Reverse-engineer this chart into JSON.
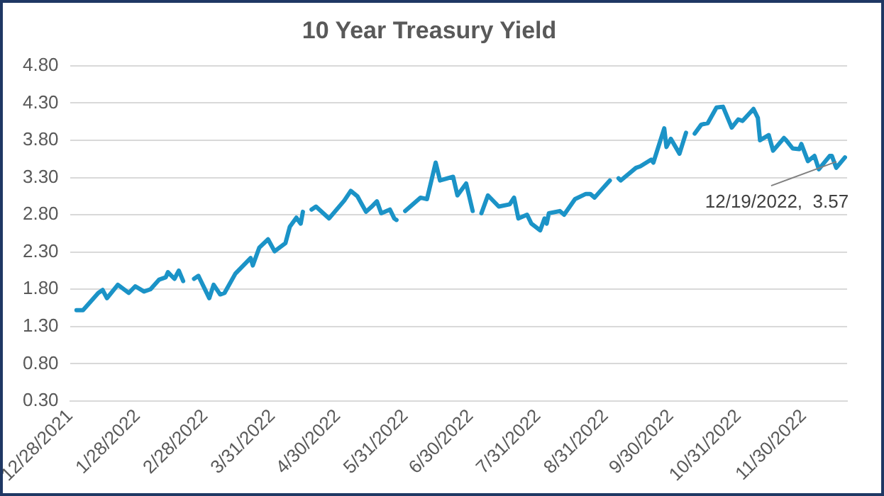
{
  "chart_data": {
    "type": "line",
    "title": "10 Year Treasury Yield",
    "color": "#1b93c7",
    "grid": "y",
    "legend": false,
    "marker": "none",
    "line_style": "solid",
    "x": [
      "2021-12-31",
      "2022-01-03",
      "2022-01-10",
      "2022-01-12",
      "2022-01-14",
      "2022-01-19",
      "2022-01-24",
      "2022-01-27",
      "2022-01-31",
      "2022-02-03",
      "2022-02-07",
      "2022-02-10",
      "2022-02-11",
      "2022-02-14",
      "2022-02-16",
      "2022-02-18",
      "2022-02-21",
      "2022-02-23",
      "2022-02-25",
      "2022-03-02",
      "2022-03-04",
      "2022-03-07",
      "2022-03-09",
      "2022-03-14",
      "2022-03-21",
      "2022-03-22",
      "2022-03-25",
      "2022-03-29",
      "2022-04-01",
      "2022-04-06",
      "2022-04-08",
      "2022-04-11",
      "2022-04-13",
      "2022-04-14",
      "2022-04-15",
      "2022-04-18",
      "2022-04-20",
      "2022-04-26",
      "2022-05-03",
      "2022-05-06",
      "2022-05-09",
      "2022-05-13",
      "2022-05-16",
      "2022-05-18",
      "2022-05-20",
      "2022-05-24",
      "2022-05-26",
      "2022-05-27",
      "2022-05-30",
      "2022-05-31",
      "2022-06-07",
      "2022-06-10",
      "2022-06-14",
      "2022-06-16",
      "2022-06-22",
      "2022-06-24",
      "2022-06-28",
      "2022-07-01",
      "2022-07-04",
      "2022-07-05",
      "2022-07-08",
      "2022-07-13",
      "2022-07-18",
      "2022-07-20",
      "2022-07-22",
      "2022-07-26",
      "2022-07-28",
      "2022-08-01",
      "2022-08-03",
      "2022-08-04",
      "2022-08-05",
      "2022-08-10",
      "2022-08-12",
      "2022-08-17",
      "2022-08-22",
      "2022-08-24",
      "2022-08-26",
      "2022-08-29",
      "2022-09-02",
      "2022-09-05",
      "2022-09-06",
      "2022-09-07",
      "2022-09-14",
      "2022-09-16",
      "2022-09-21",
      "2022-09-22",
      "2022-09-27",
      "2022-09-28",
      "2022-09-30",
      "2022-10-04",
      "2022-10-07",
      "2022-10-10",
      "2022-10-11",
      "2022-10-14",
      "2022-10-17",
      "2022-10-21",
      "2022-10-24",
      "2022-10-28",
      "2022-10-31",
      "2022-11-02",
      "2022-11-07",
      "2022-11-09",
      "2022-11-10",
      "2022-11-14",
      "2022-11-16",
      "2022-11-21",
      "2022-11-22",
      "2022-11-25",
      "2022-11-28",
      "2022-11-29",
      "2022-12-02",
      "2022-12-05",
      "2022-12-07",
      "2022-12-12",
      "2022-12-13",
      "2022-12-15",
      "2022-12-19"
    ],
    "values": [
      1.52,
      1.52,
      1.75,
      1.79,
      1.68,
      1.86,
      1.75,
      1.84,
      1.77,
      1.8,
      1.93,
      1.96,
      2.03,
      1.94,
      2.05,
      1.91,
      null,
      1.94,
      1.98,
      1.68,
      1.86,
      1.73,
      1.75,
      2.01,
      2.22,
      2.12,
      2.36,
      2.47,
      2.31,
      2.42,
      2.64,
      2.76,
      2.68,
      2.84,
      null,
      2.87,
      2.91,
      2.75,
      2.99,
      3.12,
      3.05,
      2.84,
      2.92,
      2.98,
      2.82,
      2.87,
      2.75,
      2.73,
      null,
      2.85,
      3.03,
      3.01,
      3.5,
      3.26,
      3.31,
      3.06,
      3.22,
      2.85,
      null,
      2.82,
      3.06,
      2.91,
      2.94,
      3.03,
      2.75,
      2.8,
      2.68,
      2.59,
      2.75,
      2.68,
      2.82,
      2.85,
      2.8,
      3.01,
      3.08,
      3.08,
      3.03,
      3.13,
      3.26,
      null,
      3.29,
      3.26,
      3.43,
      3.45,
      3.54,
      3.5,
      3.96,
      3.71,
      3.82,
      3.62,
      3.9,
      null,
      3.89,
      4.01,
      4.03,
      4.24,
      4.25,
      3.97,
      4.08,
      4.06,
      4.22,
      4.1,
      3.8,
      3.87,
      3.66,
      3.83,
      3.8,
      3.69,
      3.68,
      3.75,
      3.52,
      3.59,
      3.41,
      3.59,
      3.59,
      3.43,
      3.57
    ],
    "xlim": [
      "2021-12-28",
      "2022-12-20"
    ],
    "xticks": [
      {
        "value": "2021-12-28",
        "label": "12/28/2021"
      },
      {
        "value": "2022-01-28",
        "label": "1/28/2022"
      },
      {
        "value": "2022-02-28",
        "label": "2/28/2022"
      },
      {
        "value": "2022-03-31",
        "label": "3/31/2022"
      },
      {
        "value": "2022-04-30",
        "label": "4/30/2022"
      },
      {
        "value": "2022-05-31",
        "label": "5/31/2022"
      },
      {
        "value": "2022-06-30",
        "label": "6/30/2022"
      },
      {
        "value": "2022-07-31",
        "label": "7/31/2022"
      },
      {
        "value": "2022-08-31",
        "label": "8/31/2022"
      },
      {
        "value": "2022-09-30",
        "label": "9/30/2022"
      },
      {
        "value": "2022-10-31",
        "label": "10/31/2022"
      },
      {
        "value": "2022-11-30",
        "label": "11/30/2022"
      }
    ],
    "ylim": [
      0.3,
      4.8
    ],
    "yticks": [
      {
        "value": 0.3,
        "label": "0.30"
      },
      {
        "value": 0.8,
        "label": "0.80"
      },
      {
        "value": 1.3,
        "label": "1.30"
      },
      {
        "value": 1.8,
        "label": "1.80"
      },
      {
        "value": 2.3,
        "label": "2.30"
      },
      {
        "value": 2.8,
        "label": "2.80"
      },
      {
        "value": 3.3,
        "label": "3.30"
      },
      {
        "value": 3.8,
        "label": "3.80"
      },
      {
        "value": 4.3,
        "label": "4.30"
      },
      {
        "value": 4.8,
        "label": "4.80"
      }
    ],
    "annotations": [
      {
        "text": "12/19/2022,  3.57",
        "x": "2022-12-19",
        "y": 3.57
      }
    ]
  }
}
